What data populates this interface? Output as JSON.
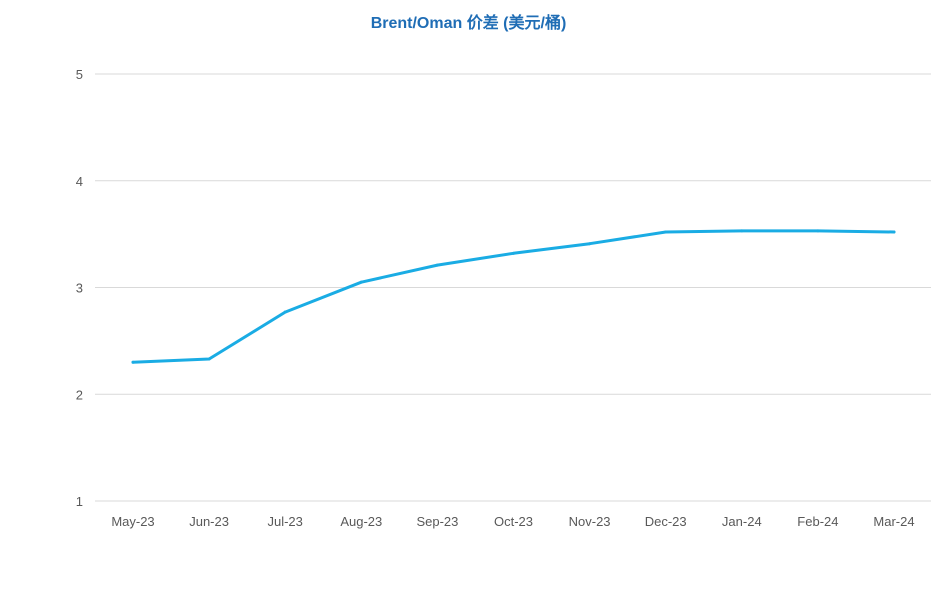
{
  "chart_data": {
    "type": "line",
    "title": "Brent/Oman 价差 (美元/桶)",
    "xlabel": "",
    "ylabel": "",
    "categories": [
      "May-23",
      "Jun-23",
      "Jul-23",
      "Aug-23",
      "Sep-23",
      "Oct-23",
      "Nov-23",
      "Dec-23",
      "Jan-24",
      "Feb-24",
      "Mar-24"
    ],
    "series": [
      {
        "values": [
          2.3,
          2.33,
          2.77,
          3.05,
          3.21,
          3.32,
          3.41,
          3.52,
          3.53,
          3.53,
          3.52
        ]
      }
    ],
    "ylim": [
      1,
      5
    ],
    "yticks": [
      "1",
      "2",
      "3",
      "4",
      "5"
    ],
    "grid": true,
    "legend": "none",
    "line_color": "#1aace4",
    "grid_color": "#d9d9d9"
  }
}
